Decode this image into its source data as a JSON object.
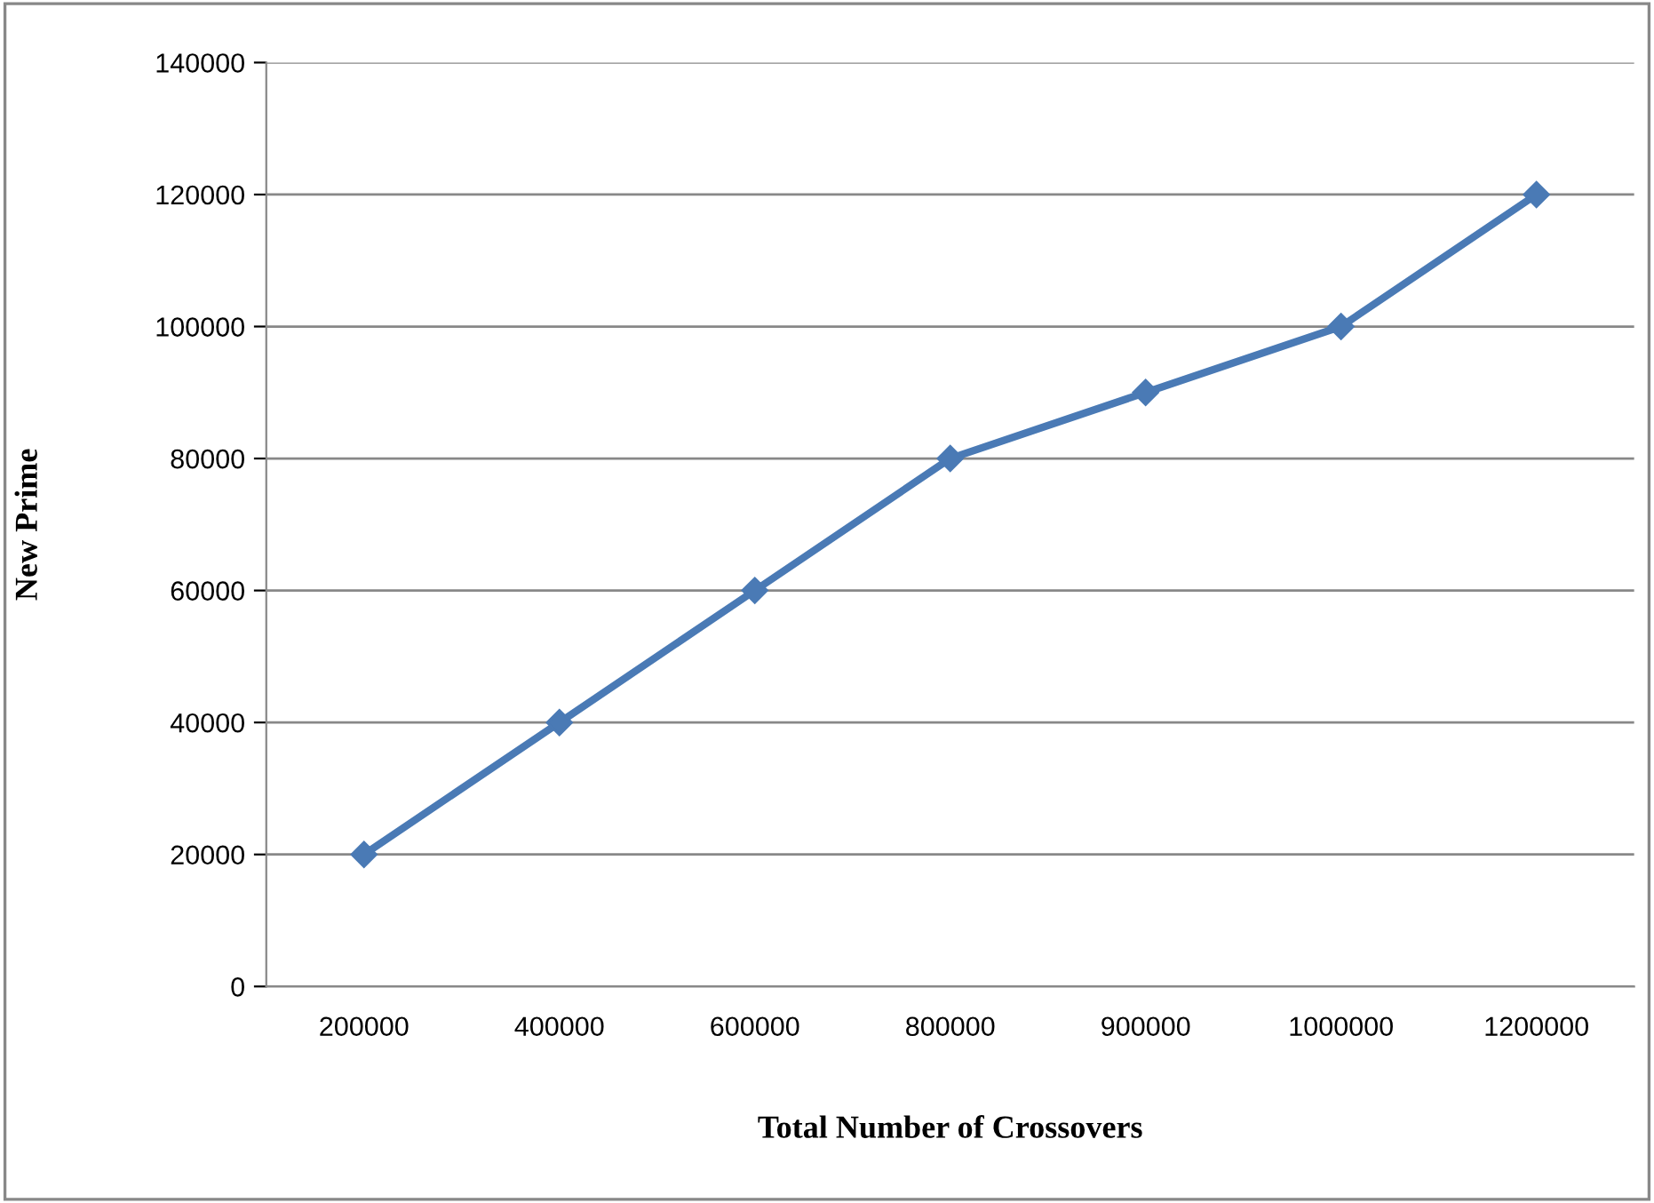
{
  "chart_data": {
    "type": "line",
    "xlabel": "Total Number of Crossovers",
    "ylabel": "New Prime",
    "categories": [
      "200000",
      "400000",
      "600000",
      "800000",
      "900000",
      "1000000",
      "1200000"
    ],
    "series": [
      {
        "color": "#4a7ab5",
        "values": [
          20000,
          40000,
          60000,
          80000,
          90000,
          100000,
          120000
        ]
      }
    ],
    "ylim": [
      0,
      140000
    ],
    "yticks": [
      0,
      20000,
      40000,
      60000,
      80000,
      100000,
      120000,
      140000
    ],
    "grid": "y",
    "marker": "diamond",
    "line_style": "solid",
    "legend": false
  }
}
